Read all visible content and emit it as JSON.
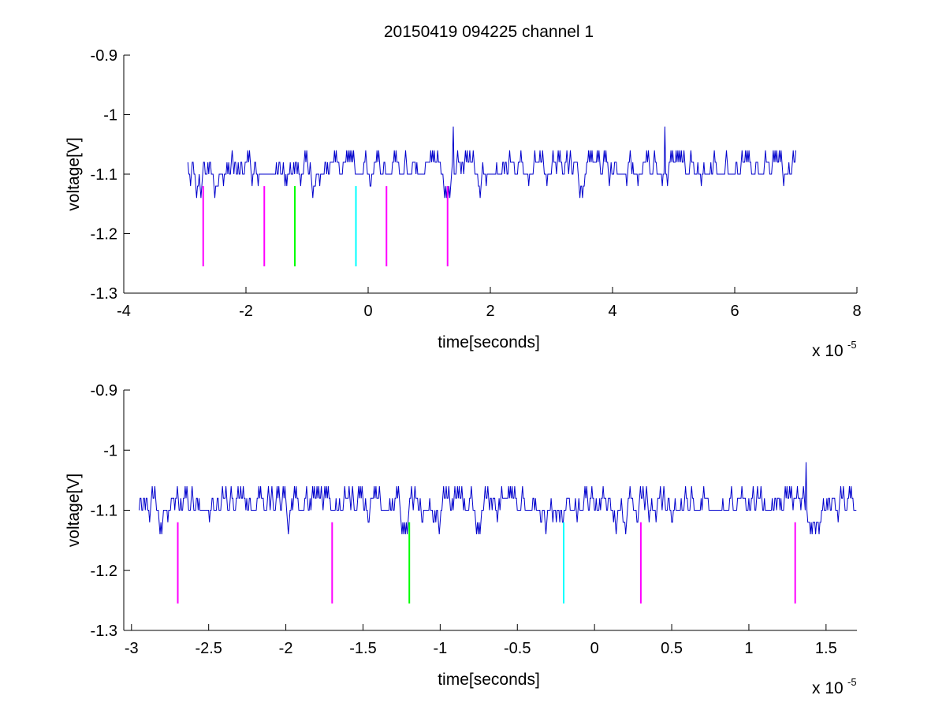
{
  "title": "20150419 094225 channel 1",
  "chart_data": [
    {
      "type": "line",
      "xlabel": "time[seconds]",
      "ylabel": "voltage[V]",
      "x_exponent_label": "x 10",
      "x_exponent": "-5",
      "xlim": [
        -4,
        8
      ],
      "ylim": [
        -1.3,
        -0.9
      ],
      "xticks": [
        -4,
        -2,
        0,
        2,
        4,
        6,
        8
      ],
      "xtick_labels": [
        "-4",
        "-2",
        "0",
        "2",
        "4",
        "6",
        "8"
      ],
      "yticks": [
        -1.3,
        -1.2,
        -1.1,
        -1.0,
        -0.9
      ],
      "ytick_labels": [
        "-1.3",
        "-1.2",
        "-1.1",
        "-1",
        "-0.9"
      ],
      "grid": false,
      "signal": {
        "color": "#0000cc",
        "x_start": -2.95,
        "x_end": 7.0,
        "levels": [
          -1.06,
          -1.08,
          -1.1,
          -1.12,
          -1.14
        ],
        "spikes": [
          {
            "x": 1.4,
            "y": -1.02
          },
          {
            "x": 4.85,
            "y": -1.02
          }
        ]
      },
      "markers": [
        {
          "x": -2.7,
          "y_top": -1.12,
          "y_bottom": -1.255,
          "color": "#ff00ff"
        },
        {
          "x": -1.7,
          "y_top": -1.12,
          "y_bottom": -1.255,
          "color": "#ff00ff"
        },
        {
          "x": -1.2,
          "y_top": -1.12,
          "y_bottom": -1.255,
          "color": "#00ff00"
        },
        {
          "x": -0.2,
          "y_top": -1.12,
          "y_bottom": -1.255,
          "color": "#00ffff"
        },
        {
          "x": 0.3,
          "y_top": -1.12,
          "y_bottom": -1.255,
          "color": "#ff00ff"
        },
        {
          "x": 1.3,
          "y_top": -1.12,
          "y_bottom": -1.255,
          "color": "#ff00ff"
        }
      ]
    },
    {
      "type": "line",
      "xlabel": "time[seconds]",
      "ylabel": "voltage[V]",
      "x_exponent_label": "x 10",
      "x_exponent": "-5",
      "xlim": [
        -3.05,
        1.7
      ],
      "ylim": [
        -1.3,
        -0.9
      ],
      "xticks": [
        -3,
        -2.5,
        -2,
        -1.5,
        -1,
        -0.5,
        0,
        0.5,
        1,
        1.5
      ],
      "xtick_labels": [
        "-3",
        "-2.5",
        "-2",
        "-1.5",
        "-1",
        "-0.5",
        "0",
        "0.5",
        "1",
        "1.5"
      ],
      "yticks": [
        -1.3,
        -1.2,
        -1.1,
        -1.0,
        -0.9
      ],
      "ytick_labels": [
        "-1.3",
        "-1.2",
        "-1.1",
        "-1",
        "-0.9"
      ],
      "grid": false,
      "signal": {
        "color": "#0000cc",
        "x_start": -2.95,
        "x_end": 1.7,
        "levels": [
          -1.06,
          -1.08,
          -1.1,
          -1.12,
          -1.14
        ],
        "spikes": [
          {
            "x": 1.37,
            "y": -1.02
          }
        ]
      },
      "markers": [
        {
          "x": -2.7,
          "y_top": -1.12,
          "y_bottom": -1.255,
          "color": "#ff00ff"
        },
        {
          "x": -1.7,
          "y_top": -1.12,
          "y_bottom": -1.255,
          "color": "#ff00ff"
        },
        {
          "x": -1.2,
          "y_top": -1.12,
          "y_bottom": -1.255,
          "color": "#00ff00"
        },
        {
          "x": -0.2,
          "y_top": -1.12,
          "y_bottom": -1.255,
          "color": "#00ffff"
        },
        {
          "x": 0.3,
          "y_top": -1.12,
          "y_bottom": -1.255,
          "color": "#ff00ff"
        },
        {
          "x": 1.3,
          "y_top": -1.12,
          "y_bottom": -1.255,
          "color": "#ff00ff"
        }
      ]
    }
  ]
}
